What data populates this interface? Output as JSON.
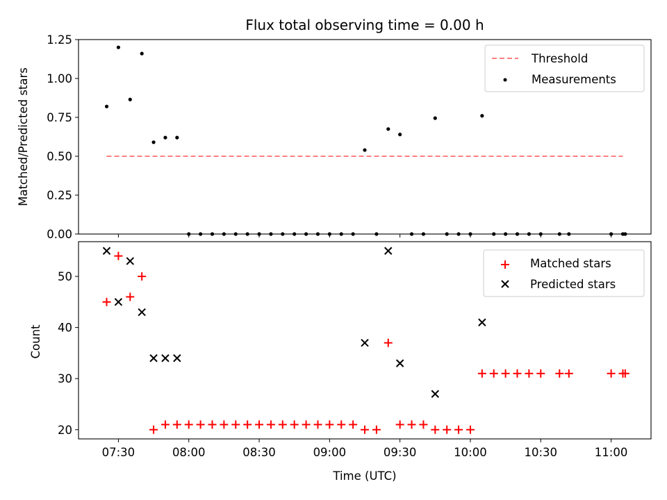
{
  "chart_data": [
    {
      "type": "scatter",
      "title": "Flux total observing time = 0.00 h",
      "xlabel": "",
      "ylabel": "Matched/Predicted stars",
      "xlim_minutes": [
        433,
        677
      ],
      "ylim": [
        0,
        1.25
      ],
      "yticks": [
        0.0,
        0.25,
        0.5,
        0.75,
        1.0,
        1.25
      ],
      "ytick_labels": [
        "0.00",
        "0.25",
        "0.50",
        "0.75",
        "1.00",
        "1.25"
      ],
      "legend_position": "top-right",
      "threshold": {
        "name": "Threshold",
        "value": 0.5,
        "x_start": 445,
        "x_end": 665,
        "color": "#ff8080",
        "style": "dashed"
      },
      "series": [
        {
          "name": "Measurements",
          "color": "#000000",
          "marker": "dot",
          "points": [
            [
              445,
              0.82
            ],
            [
              450,
              1.2
            ],
            [
              455,
              0.865
            ],
            [
              460,
              1.16
            ],
            [
              465,
              0.59
            ],
            [
              470,
              0.62
            ],
            [
              475,
              0.62
            ],
            [
              480,
              0
            ],
            [
              485,
              0
            ],
            [
              490,
              0
            ],
            [
              495,
              0
            ],
            [
              500,
              0
            ],
            [
              505,
              0
            ],
            [
              510,
              0
            ],
            [
              515,
              0
            ],
            [
              520,
              0
            ],
            [
              525,
              0
            ],
            [
              530,
              0
            ],
            [
              535,
              0
            ],
            [
              540,
              0
            ],
            [
              545,
              0
            ],
            [
              550,
              0
            ],
            [
              555,
              0.54
            ],
            [
              560,
              0
            ],
            [
              565,
              0.675
            ],
            [
              570,
              0.64
            ],
            [
              575,
              0
            ],
            [
              580,
              0
            ],
            [
              585,
              0.745
            ],
            [
              590,
              0
            ],
            [
              595,
              0
            ],
            [
              600,
              0
            ],
            [
              605,
              0.76
            ],
            [
              610,
              0
            ],
            [
              615,
              0
            ],
            [
              620,
              0
            ],
            [
              625,
              0
            ],
            [
              630,
              0
            ],
            [
              638,
              0
            ],
            [
              642,
              0
            ],
            [
              660,
              0
            ],
            [
              665,
              0
            ],
            [
              666,
              0
            ]
          ]
        }
      ]
    },
    {
      "type": "scatter",
      "title": "",
      "xlabel": "Time (UTC)",
      "ylabel": "Count",
      "xlim_minutes": [
        433,
        677
      ],
      "ylim": [
        18.2,
        56.8
      ],
      "yticks": [
        20,
        30,
        40,
        50
      ],
      "ytick_labels": [
        "20",
        "30",
        "40",
        "50"
      ],
      "xticks_minutes": [
        450,
        480,
        510,
        540,
        570,
        600,
        630,
        660
      ],
      "xtick_labels": [
        "07:30",
        "08:00",
        "08:30",
        "09:00",
        "09:30",
        "10:00",
        "10:30",
        "11:00"
      ],
      "legend_position": "top-right",
      "series": [
        {
          "name": "Matched stars",
          "color": "#ff0000",
          "marker": "plus",
          "points": [
            [
              445,
              45
            ],
            [
              450,
              54
            ],
            [
              455,
              46
            ],
            [
              460,
              50
            ],
            [
              465,
              20
            ],
            [
              470,
              21
            ],
            [
              475,
              21
            ],
            [
              480,
              21
            ],
            [
              485,
              21
            ],
            [
              490,
              21
            ],
            [
              495,
              21
            ],
            [
              500,
              21
            ],
            [
              505,
              21
            ],
            [
              510,
              21
            ],
            [
              515,
              21
            ],
            [
              520,
              21
            ],
            [
              525,
              21
            ],
            [
              530,
              21
            ],
            [
              535,
              21
            ],
            [
              540,
              21
            ],
            [
              545,
              21
            ],
            [
              550,
              21
            ],
            [
              555,
              20
            ],
            [
              560,
              20
            ],
            [
              565,
              37
            ],
            [
              570,
              21
            ],
            [
              575,
              21
            ],
            [
              580,
              21
            ],
            [
              585,
              20
            ],
            [
              590,
              20
            ],
            [
              595,
              20
            ],
            [
              600,
              20
            ],
            [
              605,
              31
            ],
            [
              610,
              31
            ],
            [
              615,
              31
            ],
            [
              620,
              31
            ],
            [
              625,
              31
            ],
            [
              630,
              31
            ],
            [
              638,
              31
            ],
            [
              642,
              31
            ],
            [
              660,
              31
            ],
            [
              665,
              31
            ],
            [
              666,
              31
            ]
          ]
        },
        {
          "name": "Predicted stars",
          "color": "#000000",
          "marker": "x",
          "points": [
            [
              445,
              55
            ],
            [
              450,
              45
            ],
            [
              455,
              53
            ],
            [
              460,
              43
            ],
            [
              465,
              34
            ],
            [
              470,
              34
            ],
            [
              475,
              34
            ],
            [
              555,
              37
            ],
            [
              565,
              55
            ],
            [
              570,
              33
            ],
            [
              585,
              27
            ],
            [
              605,
              41
            ]
          ]
        }
      ]
    }
  ]
}
